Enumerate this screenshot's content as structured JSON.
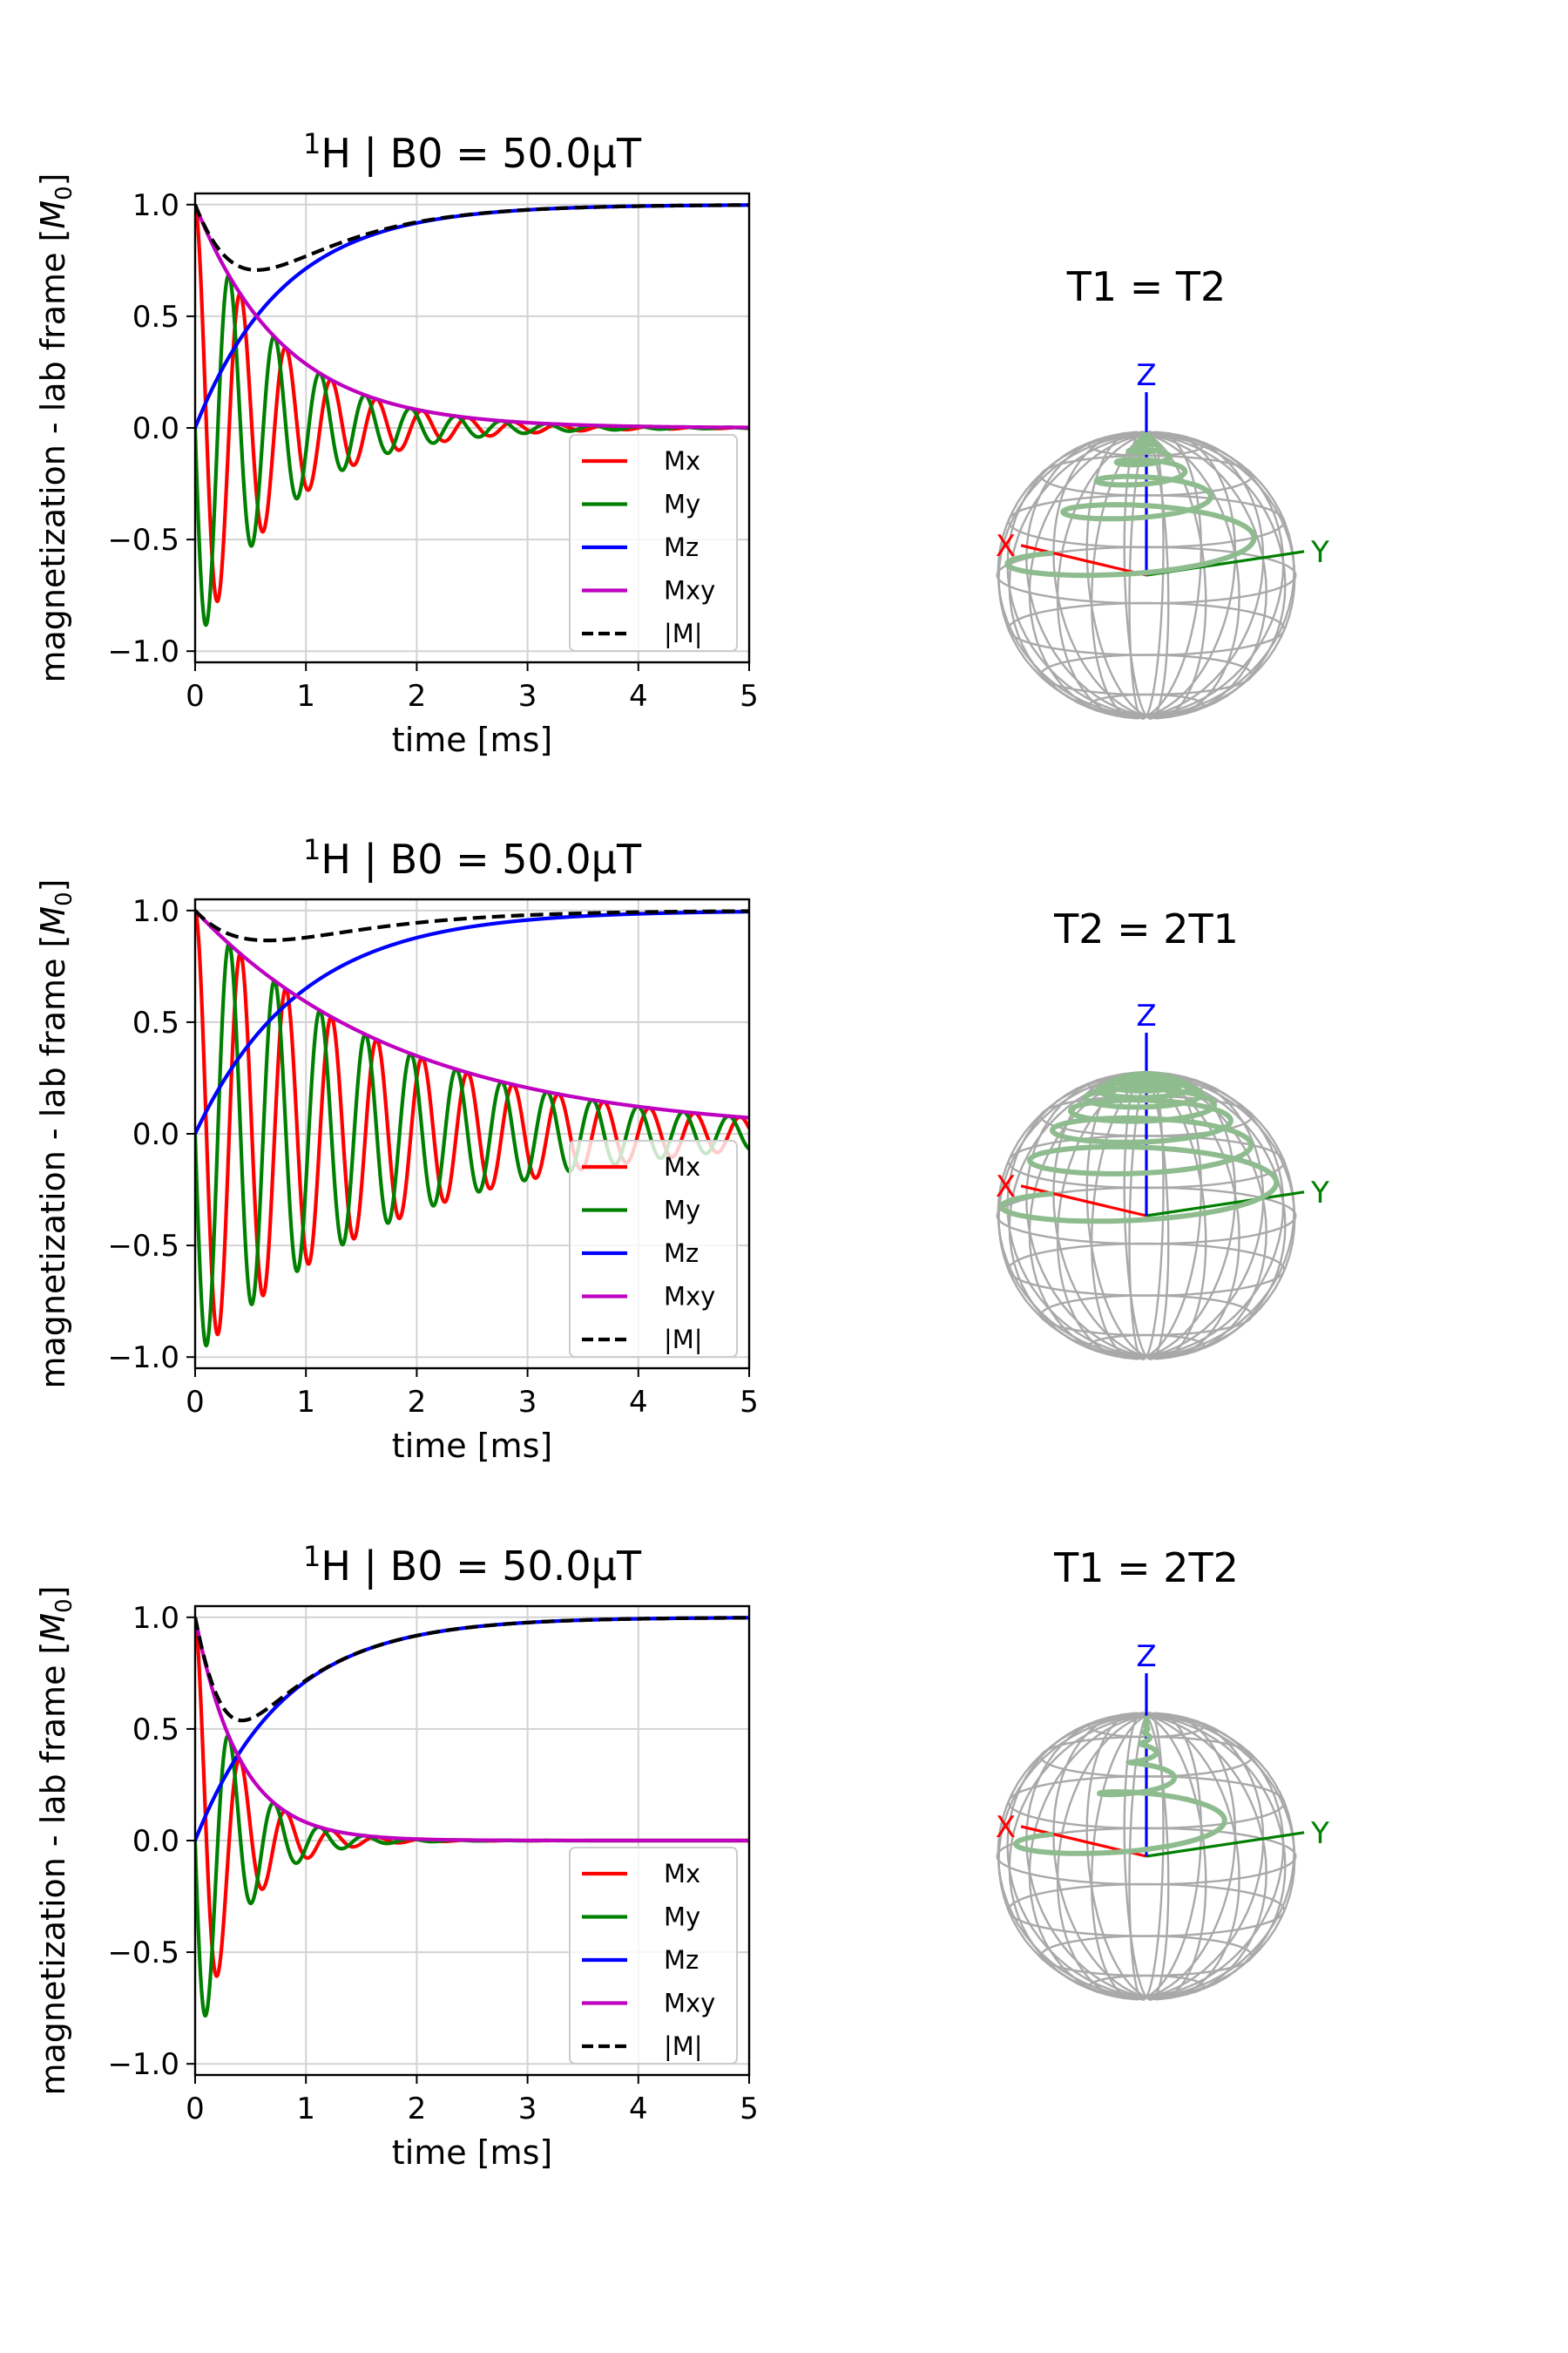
{
  "chart_data": [
    {
      "type": "line",
      "title_nucleus": "1H",
      "title_rest": "H | B0 = 50.0μT",
      "xlabel": "time [ms]",
      "ylabel": "magnetization - lab frame [M0]",
      "xlim": [
        0,
        5
      ],
      "ylim": [
        -1.05,
        1.05
      ],
      "xticks": [
        "0",
        "1",
        "2",
        "3",
        "4",
        "5"
      ],
      "yticks": [
        "1.0",
        "0.5",
        "0.0",
        "−0.5",
        "−1.0"
      ],
      "grid": true,
      "legend_position": "lower-right",
      "T1_ms": 0.8,
      "T2_ms": 0.8,
      "period_ms": 0.41,
      "series": [
        {
          "name": "Mx",
          "color": "#ff0000",
          "style": "solid",
          "formula": "Mx = exp(-t/T2)·cos(2πt/P)"
        },
        {
          "name": "My",
          "color": "#008000",
          "style": "solid",
          "formula": "My = -exp(-t/T2)·sin(2πt/P)"
        },
        {
          "name": "Mz",
          "color": "#0000ff",
          "style": "solid",
          "formula": "Mz = 1 - exp(-t/T1)"
        },
        {
          "name": "Mxy",
          "color": "#bf00bf",
          "style": "solid",
          "formula": "Mxy = exp(-t/T2)"
        },
        {
          "name": "|M|",
          "color": "#000000",
          "style": "dashed",
          "formula": "|M| = sqrt(Mxy² + Mz²)"
        }
      ],
      "sphere_title": "T1 = T2"
    },
    {
      "type": "line",
      "title_nucleus": "1H",
      "title_rest": "H | B0 = 50.0μT",
      "xlabel": "time [ms]",
      "ylabel": "magnetization - lab frame [M0]",
      "xlim": [
        0,
        5
      ],
      "ylim": [
        -1.05,
        1.05
      ],
      "xticks": [
        "0",
        "1",
        "2",
        "3",
        "4",
        "5"
      ],
      "yticks": [
        "1.0",
        "0.5",
        "0.0",
        "−0.5",
        "−1.0"
      ],
      "grid": true,
      "legend_position": "lower-right",
      "T1_ms": 0.95,
      "T2_ms": 1.9,
      "period_ms": 0.41,
      "series": [
        {
          "name": "Mx",
          "color": "#ff0000",
          "style": "solid",
          "formula": "Mx = exp(-t/T2)·cos(2πt/P)"
        },
        {
          "name": "My",
          "color": "#008000",
          "style": "solid",
          "formula": "My = -exp(-t/T2)·sin(2πt/P)"
        },
        {
          "name": "Mz",
          "color": "#0000ff",
          "style": "solid",
          "formula": "Mz = 1 - exp(-t/T1)"
        },
        {
          "name": "Mxy",
          "color": "#bf00bf",
          "style": "solid",
          "formula": "Mxy = exp(-t/T2)"
        },
        {
          "name": "|M|",
          "color": "#000000",
          "style": "dashed",
          "formula": "|M| = sqrt(Mxy² + Mz²)"
        }
      ],
      "sphere_title": "T2 = 2T1"
    },
    {
      "type": "line",
      "title_nucleus": "1H",
      "title_rest": "H | B0 = 50.0μT",
      "xlabel": "time [ms]",
      "ylabel": "magnetization - lab frame [M0]",
      "xlim": [
        0,
        5
      ],
      "ylim": [
        -1.05,
        1.05
      ],
      "xticks": [
        "0",
        "1",
        "2",
        "3",
        "4",
        "5"
      ],
      "yticks": [
        "1.0",
        "0.5",
        "0.0",
        "−0.5",
        "−1.0"
      ],
      "grid": true,
      "legend_position": "lower-right",
      "T1_ms": 0.8,
      "T2_ms": 0.4,
      "period_ms": 0.41,
      "series": [
        {
          "name": "Mx",
          "color": "#ff0000",
          "style": "solid",
          "formula": "Mx = exp(-t/T2)·cos(2πt/P)"
        },
        {
          "name": "My",
          "color": "#008000",
          "style": "solid",
          "formula": "My = -exp(-t/T2)·sin(2πt/P)"
        },
        {
          "name": "Mz",
          "color": "#0000ff",
          "style": "solid",
          "formula": "Mz = 1 - exp(-t/T1)"
        },
        {
          "name": "Mxy",
          "color": "#bf00bf",
          "style": "solid",
          "formula": "Mxy = exp(-t/T2)"
        },
        {
          "name": "|M|",
          "color": "#000000",
          "style": "dashed",
          "formula": "|M| = sqrt(Mxy² + Mz²)"
        }
      ],
      "sphere_title": "T1 = 2T2"
    }
  ],
  "sphere_axes": {
    "x": "X",
    "y": "Y",
    "z": "Z"
  },
  "colors": {
    "trajectory": "#8fbc8f",
    "wireframe": "#a9a9a9",
    "axis_x": "#ff0000",
    "axis_y": "#008000",
    "axis_z": "#0000ff",
    "grid": "#d3d3d3"
  }
}
